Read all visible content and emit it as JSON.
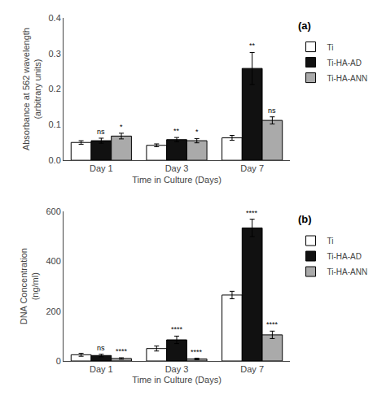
{
  "chart_data": [
    {
      "type": "bar",
      "title": "(a)",
      "xlabel": "Time in Culture (Days)",
      "ylabel": "Absorbance at 562 wavelength\n(arbitrary units)",
      "categories": [
        "Day 1",
        "Day 3",
        "Day 7"
      ],
      "series": [
        {
          "name": "Ti",
          "color": "white",
          "values": [
            0.05,
            0.042,
            0.063
          ],
          "errors": [
            0.005,
            0.004,
            0.007
          ]
        },
        {
          "name": "Ti-HA-AD",
          "color": "#111111",
          "values": [
            0.055,
            0.058,
            0.258
          ],
          "errors": [
            0.007,
            0.006,
            0.045
          ],
          "annotations": [
            "ns",
            "**",
            "**"
          ]
        },
        {
          "name": "Ti-HA-ANN",
          "color": "#aaaaaa",
          "values": [
            0.068,
            0.055,
            0.112
          ],
          "errors": [
            0.008,
            0.006,
            0.01
          ],
          "annotations": [
            "*",
            "*",
            "ns"
          ]
        }
      ],
      "ylim": [
        0,
        0.4
      ],
      "yticks": [
        {
          "value": 0,
          "label": "0.0"
        },
        0.1,
        0.2,
        0.3,
        0.4
      ],
      "grid": false,
      "legend": "right"
    },
    {
      "type": "bar",
      "title": "(b)",
      "xlabel": "Time in Culture (Days)",
      "ylabel": "DNA Concentration\n(ng/ml)",
      "categories": [
        "Day 1",
        "Day 3",
        "Day 7"
      ],
      "series": [
        {
          "name": "Ti",
          "color": "white",
          "values": [
            25,
            50,
            265
          ],
          "errors": [
            6,
            10,
            15
          ]
        },
        {
          "name": "Ti-HA-AD",
          "color": "#111111",
          "values": [
            22,
            85,
            535
          ],
          "errors": [
            5,
            15,
            35
          ],
          "annotations": [
            "ns",
            "****",
            "****"
          ]
        },
        {
          "name": "Ti-HA-ANN",
          "color": "#aaaaaa",
          "values": [
            10,
            8,
            105
          ],
          "errors": [
            3,
            3,
            15
          ],
          "annotations": [
            "****",
            "****",
            "****"
          ]
        }
      ],
      "ylim": [
        0,
        600
      ],
      "yticks": [
        0,
        200,
        400,
        600
      ],
      "grid": false,
      "legend": "right"
    }
  ]
}
